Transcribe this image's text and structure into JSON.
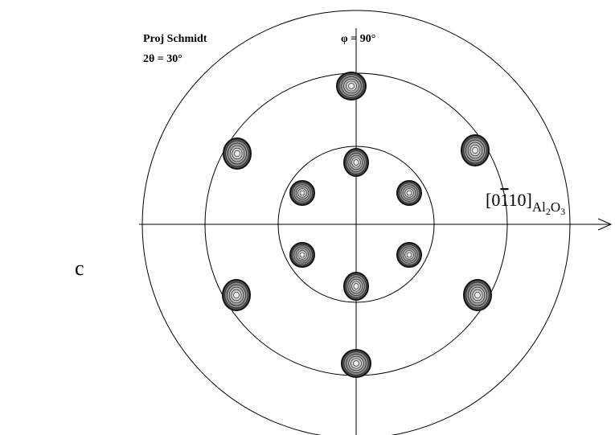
{
  "labels": {
    "projection": "Proj Schmidt",
    "two_theta": "2θ = 30°",
    "phi": "φ = 90°",
    "panel": "c"
  },
  "axis_label": {
    "parts": [
      "[0",
      "1",
      "10]",
      "Al",
      "2",
      "O",
      "3"
    ]
  }
}
